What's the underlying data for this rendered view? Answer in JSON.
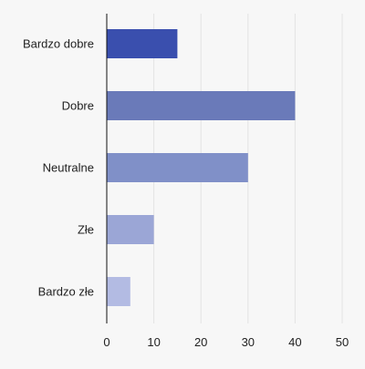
{
  "chart_data": {
    "type": "bar",
    "orientation": "horizontal",
    "categories": [
      "Bardzo dobre",
      "Dobre",
      "Neutralne",
      "Złe",
      "Bardzo złe"
    ],
    "values": [
      15,
      40,
      30,
      10,
      5
    ],
    "colors": [
      "#3a4fae",
      "#6a7ab9",
      "#8090c8",
      "#9ba6d6",
      "#b3bbe3"
    ],
    "xlim": [
      0,
      50
    ],
    "xticks": [
      0,
      10,
      20,
      30,
      40,
      50
    ],
    "grid": "vertical",
    "legend": "none",
    "title": "",
    "xlabel": "",
    "ylabel": ""
  }
}
